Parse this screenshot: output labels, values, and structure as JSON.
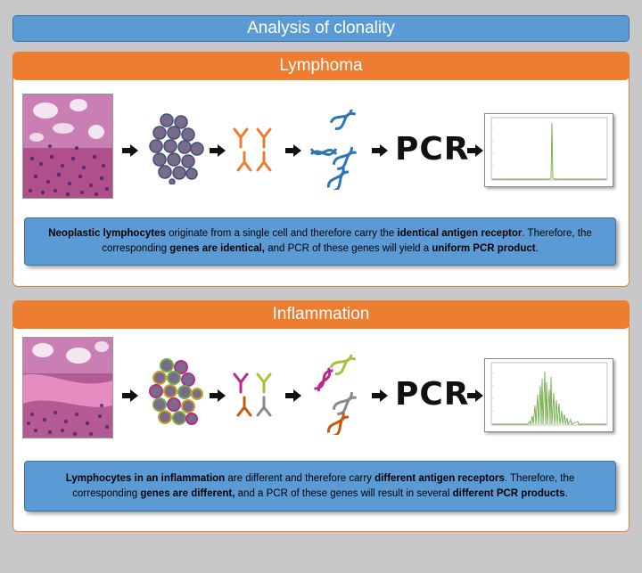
{
  "header": {
    "title": "Analysis of clonality"
  },
  "panels": [
    {
      "title": "Lymphoma",
      "pcr_label": "PCR",
      "text": [
        {
          "b": true,
          "t": "Neoplastic lymphocytes"
        },
        {
          "b": false,
          "t": " originate from a single cell and therefore carry the "
        },
        {
          "b": true,
          "t": "identical antigen receptor"
        },
        {
          "b": false,
          "t": ". Therefore, the corresponding  "
        },
        {
          "b": true,
          "t": "genes are identical,"
        },
        {
          "b": false,
          "t": " and PCR of these genes will yield a "
        },
        {
          "b": true,
          "t": "uniform PCR product"
        },
        {
          "b": false,
          "t": "."
        }
      ]
    },
    {
      "title": "Inflammation",
      "pcr_label": "PCR",
      "text": [
        {
          "b": true,
          "t": "Lymphocytes in an inflammation"
        },
        {
          "b": false,
          "t": " are different and therefore carry "
        },
        {
          "b": true,
          "t": "different antigen receptors"
        },
        {
          "b": false,
          "t": ". Therefore, the corresponding  "
        },
        {
          "b": true,
          "t": "genes are different,"
        },
        {
          "b": false,
          "t": " and a PCR of these genes will result in several "
        },
        {
          "b": true,
          "t": "different PCR products"
        },
        {
          "b": false,
          "t": "."
        }
      ]
    }
  ],
  "colors": {
    "header_bg": "#5b9bd5",
    "panel_title_bg": "#ed7d31",
    "textbox_bg": "#5b9bd5",
    "cell_fill": "#7a6b8a",
    "antibody_lymphoma": "#ed7d31",
    "dna_lymphoma": "#2e75b6",
    "peak_line": "#70ad47"
  }
}
